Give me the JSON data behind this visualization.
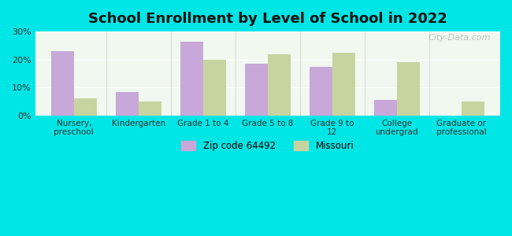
{
  "title": "School Enrollment by Level of School in 2022",
  "categories": [
    "Nursery,\npreschool",
    "Kindergarten",
    "Grade 1 to 4",
    "Grade 5 to 8",
    "Grade 9 to\n12",
    "College\nundergrad",
    "Graduate or\nprofessional"
  ],
  "zip_values": [
    23.0,
    8.5,
    26.5,
    18.5,
    17.5,
    5.5,
    0.0
  ],
  "mo_values": [
    6.0,
    5.0,
    20.0,
    22.0,
    22.5,
    19.0,
    5.0
  ],
  "zip_color": "#c8a8d8",
  "mo_color": "#c8d4a0",
  "background_color": "#00e5e5",
  "plot_bg_color": "#f0f8f0",
  "ylim": [
    0,
    30
  ],
  "yticks": [
    0,
    10,
    20,
    30
  ],
  "ylabel_format": "%",
  "legend_labels": [
    "Zip code 64492",
    "Missouri"
  ],
  "watermark": "City-Data.com",
  "bar_width": 0.35
}
